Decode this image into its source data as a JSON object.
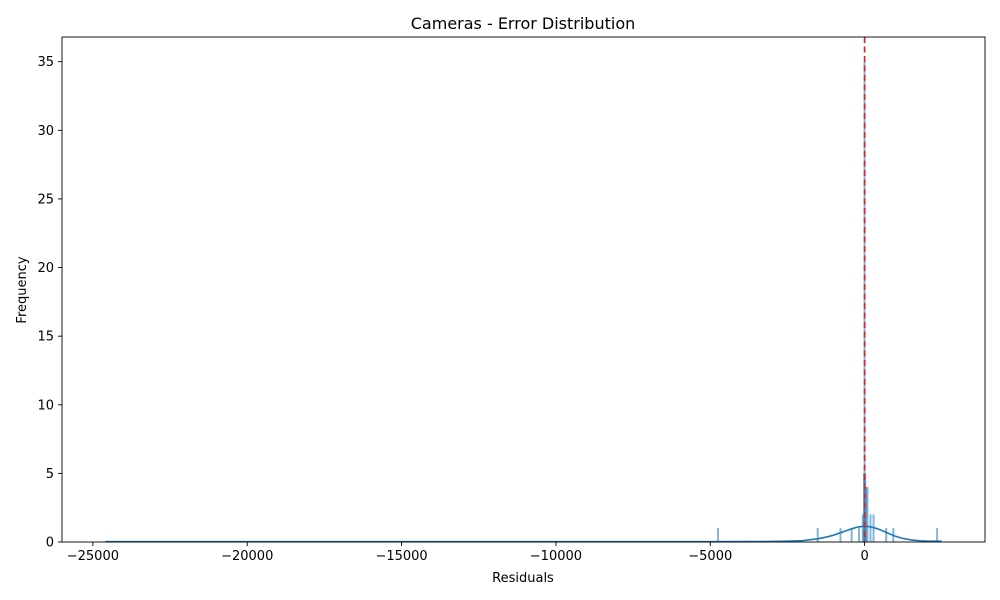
{
  "chart_data": {
    "type": "histogram",
    "title": "Cameras - Error Distribution",
    "xlabel": "Residuals",
    "ylabel": "Frequency",
    "xlim": [
      -26000,
      3900
    ],
    "ylim": [
      0,
      36.8
    ],
    "x_ticks": [
      -25000,
      -20000,
      -15000,
      -10000,
      -5000,
      0
    ],
    "x_tick_labels": [
      "−25000",
      "−20000",
      "−15000",
      "−10000",
      "−5000",
      "0"
    ],
    "y_ticks": [
      0,
      5,
      10,
      15,
      20,
      25,
      30,
      35
    ],
    "y_tick_labels": [
      "0",
      "5",
      "10",
      "15",
      "20",
      "25",
      "30",
      "35"
    ],
    "bars": [
      {
        "x": -4750,
        "count": 1
      },
      {
        "x": -1520,
        "count": 1
      },
      {
        "x": -780,
        "count": 1
      },
      {
        "x": -420,
        "count": 1
      },
      {
        "x": -180,
        "count": 1
      },
      {
        "x": -60,
        "count": 2
      },
      {
        "x": -20,
        "count": 5
      },
      {
        "x": 0,
        "count": 35
      },
      {
        "x": 20,
        "count": 5
      },
      {
        "x": 50,
        "count": 4
      },
      {
        "x": 90,
        "count": 4
      },
      {
        "x": 190,
        "count": 2
      },
      {
        "x": 290,
        "count": 2
      },
      {
        "x": 700,
        "count": 1
      },
      {
        "x": 930,
        "count": 1
      },
      {
        "x": 2350,
        "count": 1
      }
    ],
    "kde_curve": {
      "x": [
        -24600,
        -20000,
        -15000,
        -10000,
        -7000,
        -5000,
        -4000,
        -3000,
        -2500,
        -2000,
        -1500,
        -1200,
        -1000,
        -800,
        -600,
        -400,
        -200,
        0,
        100,
        200,
        400,
        600,
        800,
        1000,
        1200,
        1500,
        1800,
        2000,
        2200,
        2500
      ],
      "y": [
        0.02,
        0.02,
        0.02,
        0.02,
        0.02,
        0.02,
        0.03,
        0.04,
        0.06,
        0.1,
        0.24,
        0.38,
        0.5,
        0.66,
        0.82,
        0.98,
        1.1,
        1.15,
        1.14,
        1.1,
        0.98,
        0.8,
        0.6,
        0.42,
        0.28,
        0.15,
        0.09,
        0.07,
        0.06,
        0.05
      ]
    },
    "mean_line": {
      "x": 0,
      "color": "#d62728",
      "style": "dashed"
    },
    "bar_color": "#1f77b4",
    "kde_color": "#1f77b4",
    "grid": false,
    "legend": false
  }
}
